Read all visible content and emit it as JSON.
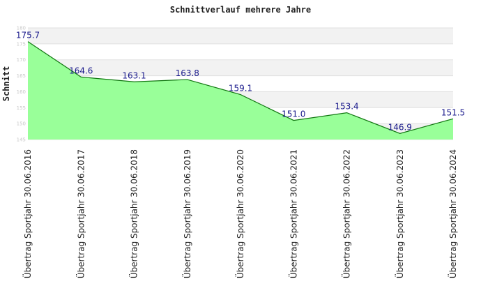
{
  "chart_data": {
    "type": "area",
    "title": "Schnittverlauf mehrere Jahre",
    "xlabel": "",
    "ylabel": "Schnitt",
    "categories": [
      "Übertrag Sportjahr 30.06.2016",
      "Übertrag Sportjahr 30.06.2017",
      "Übertrag Sportjahr 30.06.2018",
      "Übertrag Sportjahr 30.06.2019",
      "Übertrag Sportjahr 30.06.2020",
      "Übertrag Sportjahr 30.06.2021",
      "Übertrag Sportjahr 30.06.2022",
      "Übertrag Sportjahr 30.06.2023",
      "Übertrag Sportjahr 30.06.2024"
    ],
    "values": [
      175.7,
      164.6,
      163.1,
      163.8,
      159.1,
      151.0,
      153.4,
      146.9,
      151.5
    ],
    "data_labels": [
      "175.7",
      "164.6",
      "163.1",
      "163.8",
      "159.1",
      "151.0",
      "153.4",
      "146.9",
      "151.5"
    ],
    "ylim": [
      145,
      180
    ],
    "yticks": [
      145,
      150,
      155,
      160,
      165,
      170,
      175,
      180
    ],
    "ytick_labels": [
      "145",
      "150",
      "155",
      "160",
      "165",
      "170",
      "175",
      "180"
    ],
    "grid": true,
    "legend": "none",
    "colors": {
      "fill": "#99ff99",
      "line": "#117711",
      "band": "#f2f2f2",
      "grid": "#e0e0e0",
      "data_label": "#1a1a8c"
    }
  }
}
